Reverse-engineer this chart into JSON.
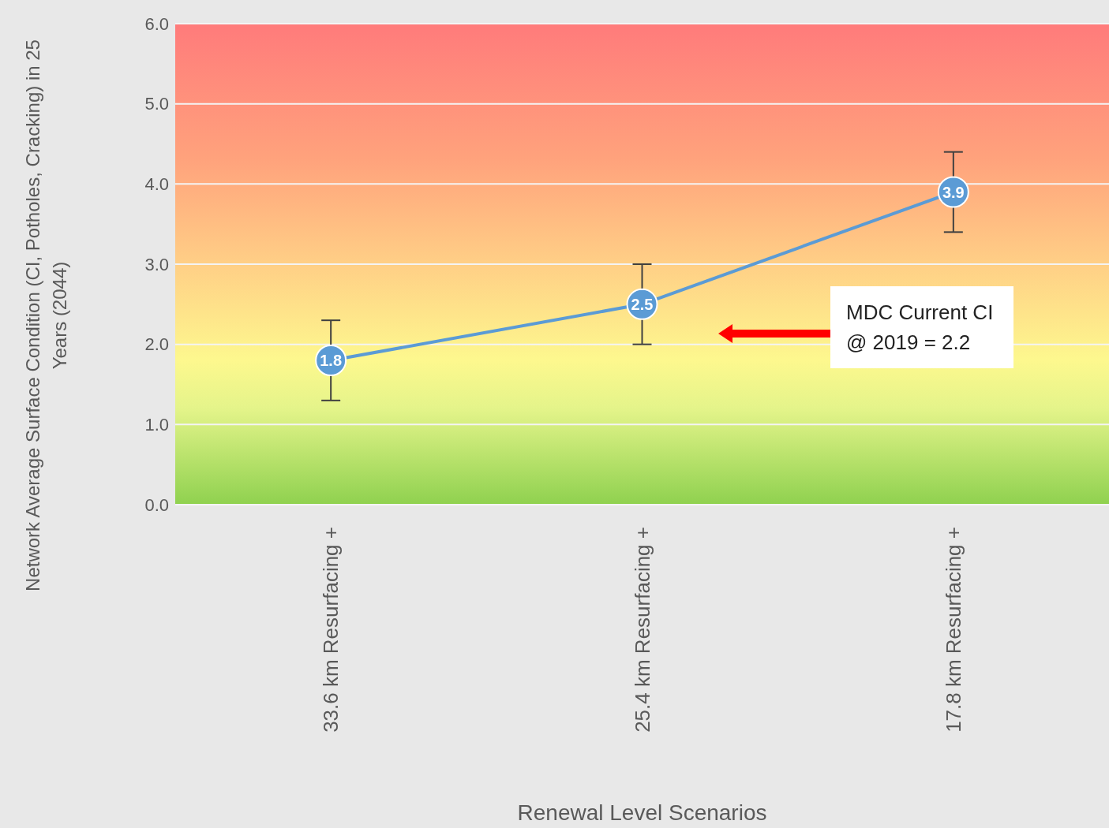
{
  "chart_data": {
    "type": "line",
    "xlabel": "Renewal Level Scenarios",
    "ylabel": "Network Average Surface Condition (CI, Potholes, Cracking) in 25 Years (2044)",
    "categories": [
      "33.6 km Resurfacing +",
      "25.4 km Resurfacing +",
      "17.8 km Resurfacing +"
    ],
    "series": [
      {
        "color": "#5b9bd5",
        "values": [
          1.8,
          2.5,
          3.9
        ],
        "errors": [
          0.5,
          0.5,
          0.5
        ]
      }
    ],
    "ylim": [
      0,
      6
    ],
    "yticks": [
      {
        "value": 0,
        "label": "0.0"
      },
      {
        "value": 1,
        "label": "1.0"
      },
      {
        "value": 2,
        "label": "2.0"
      },
      {
        "value": 3,
        "label": "3.0"
      },
      {
        "value": 4,
        "label": "4.0"
      },
      {
        "value": 5,
        "label": "5.0"
      },
      {
        "value": 6,
        "label": "6.0"
      }
    ],
    "grid": "y",
    "marker": "circle",
    "data_labels": true,
    "annotations": [
      "MDC Current CI @ 2019 = 2.2"
    ]
  }
}
